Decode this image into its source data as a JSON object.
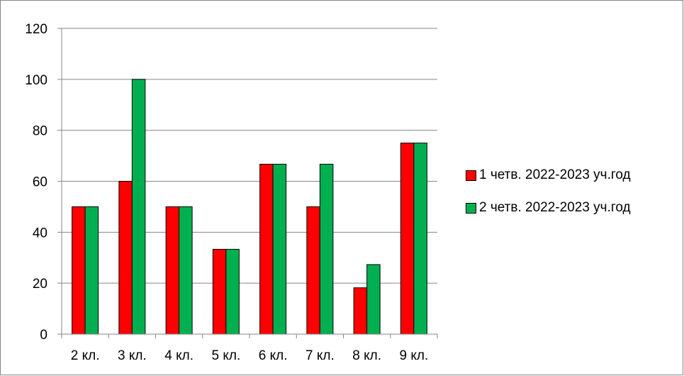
{
  "chart_data": {
    "type": "bar",
    "categories": [
      "2 кл.",
      "3 кл.",
      "4 кл.",
      "5 кл.",
      "6 кл.",
      "7 кл.",
      "8 кл.",
      "9 кл."
    ],
    "series": [
      {
        "name": "1 четв. 2022-2023 уч.год",
        "color": "#ff0000",
        "values": [
          50,
          60,
          50,
          33.3,
          66.7,
          50,
          18.2,
          75
        ]
      },
      {
        "name": "2 четв. 2022-2023 уч.год",
        "color": "#00b050",
        "values": [
          50,
          100,
          50,
          33.3,
          66.7,
          66.7,
          27.3,
          75
        ]
      }
    ],
    "title": "",
    "xlabel": "",
    "ylabel": "",
    "ylim": [
      0,
      120
    ],
    "yticks": [
      "0",
      "20",
      "40",
      "60",
      "80",
      "100",
      "120"
    ],
    "grid": true,
    "legend_position": "right"
  }
}
